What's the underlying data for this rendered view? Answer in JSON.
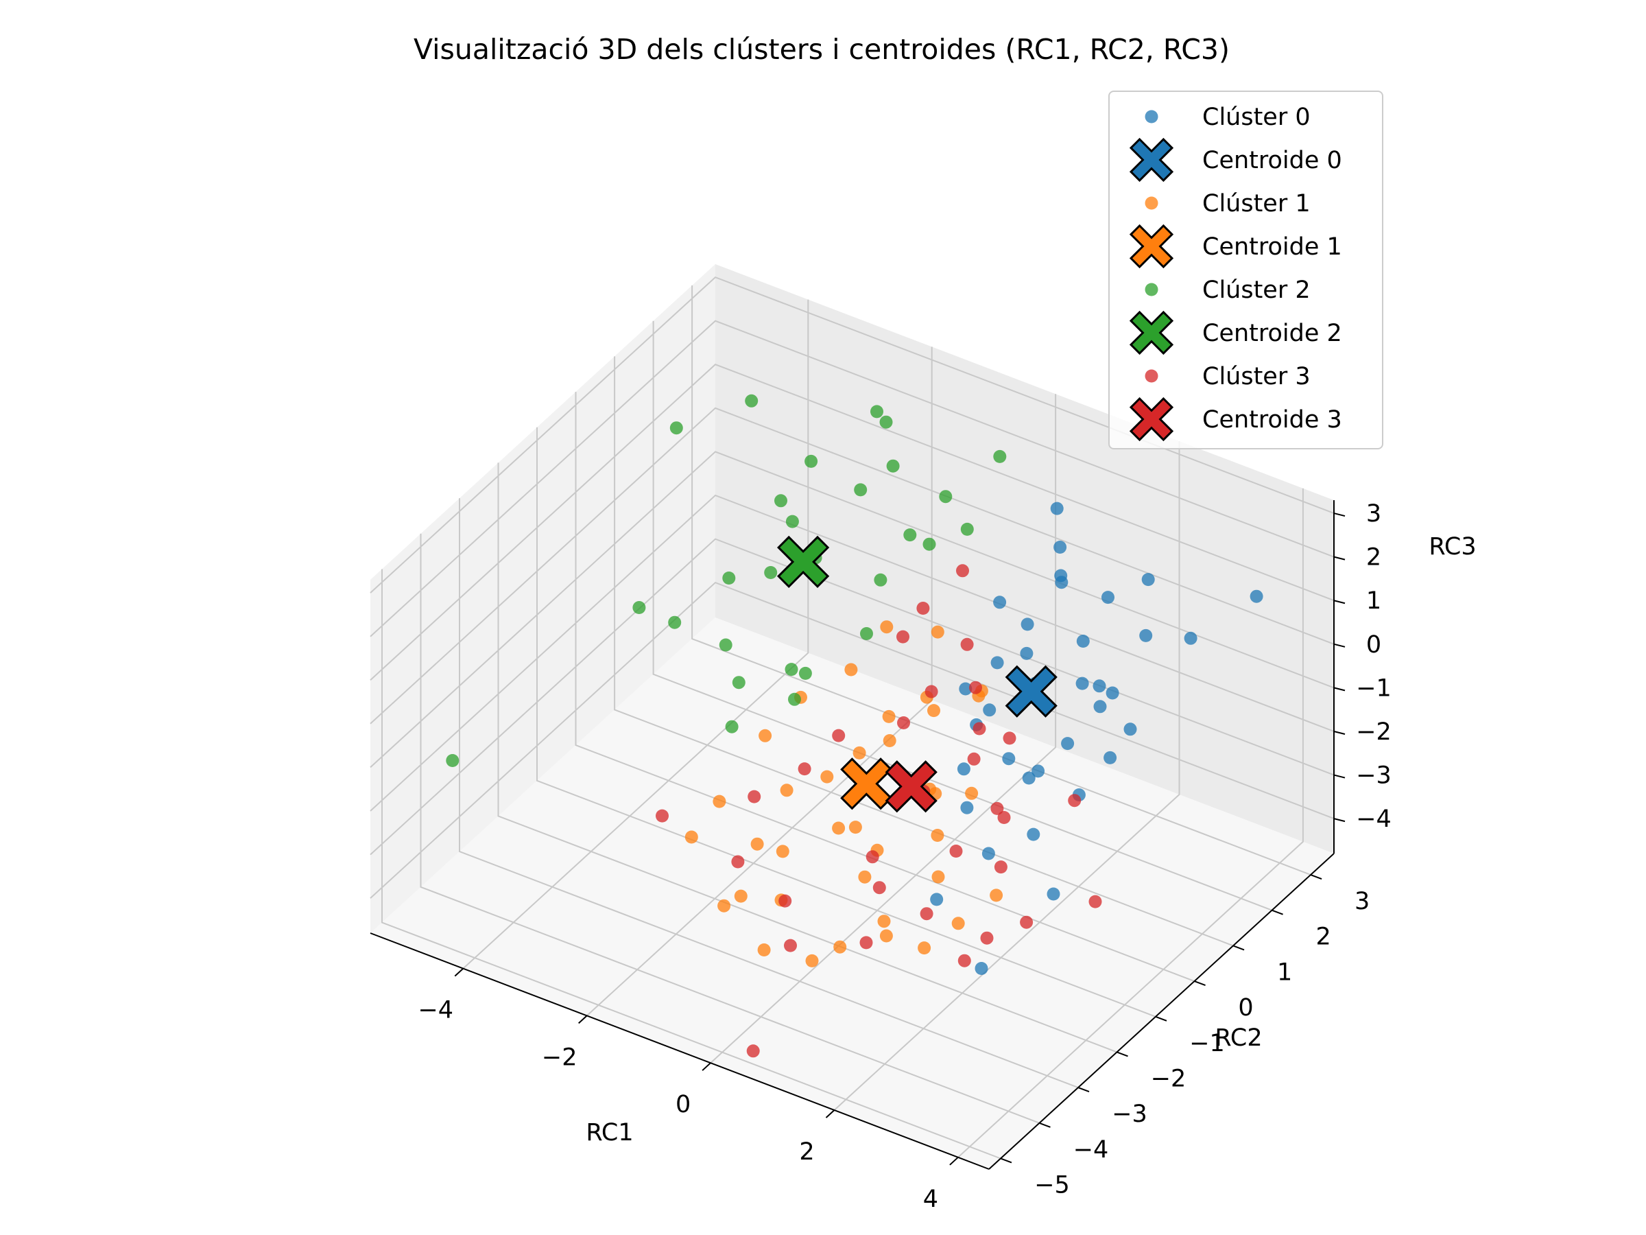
{
  "chart_data": {
    "type": "scatter",
    "title": "Visualització 3D dels clústers i centroides (RC1, RC2, RC3)",
    "xlabel": "RC1",
    "ylabel": "RC2",
    "zlabel": "RC3",
    "xlim": [
      -5.5,
      4.5
    ],
    "ylim": [
      -5.3,
      3.6
    ],
    "zlim": [
      -4.8,
      3.3
    ],
    "x_ticks": [
      "−4",
      "−2",
      "0",
      "2",
      "4"
    ],
    "y_ticks": [
      "−5",
      "−4",
      "−3",
      "−2",
      "−1",
      "0",
      "1",
      "2",
      "3"
    ],
    "z_ticks": [
      "−4",
      "−3",
      "−2",
      "−1",
      "0",
      "1",
      "2",
      "3"
    ],
    "grid": true,
    "legend_position": "top-right",
    "legend": [
      "Clúster 0",
      "Centroide 0",
      "Clúster 1",
      "Centroide 1",
      "Clúster 2",
      "Centroide 2",
      "Clúster 3",
      "Centroide 3"
    ],
    "colors": [
      "#1f77b4",
      "#ff7f0e",
      "#2ca02c",
      "#d62728"
    ],
    "series": [
      {
        "name": "Clúster 0",
        "points": [
          [
            1.6,
            1.2,
            1.8
          ],
          [
            1.4,
            1.5,
            1.6
          ],
          [
            2.2,
            0.8,
            1.1
          ],
          [
            2.5,
            0.3,
            0.7
          ],
          [
            1.8,
            0.2,
            0.4
          ],
          [
            1.0,
            0.5,
            0.2
          ],
          [
            2.8,
            0.6,
            0.4
          ],
          [
            3.1,
            -0.2,
            0.9
          ],
          [
            1.5,
            -0.5,
            0.2
          ],
          [
            2.0,
            -0.8,
            -0.4
          ],
          [
            2.6,
            -1.0,
            -0.2
          ],
          [
            3.2,
            -0.9,
            -0.5
          ],
          [
            1.2,
            1.8,
            1.9
          ],
          [
            0.9,
            2.2,
            2.3
          ],
          [
            2.9,
            1.3,
            1.2
          ],
          [
            3.4,
            0.1,
            0.3
          ],
          [
            1.7,
            -1.4,
            -1.2
          ],
          [
            2.3,
            -1.8,
            -1.6
          ],
          [
            3.6,
            -2.2,
            -1.5
          ],
          [
            0.8,
            0.0,
            -0.1
          ],
          [
            1.1,
            -0.2,
            -0.6
          ],
          [
            2.4,
            0.9,
            0.1
          ],
          [
            2.1,
            1.6,
            1.4
          ],
          [
            1.9,
            -2.5,
            -2.3
          ],
          [
            3.0,
            -3.1,
            -2.8
          ],
          [
            1.3,
            0.8,
            1.0
          ],
          [
            2.7,
            -0.4,
            0.0
          ],
          [
            0.6,
            1.2,
            0.8
          ],
          [
            3.5,
            1.5,
            1.3
          ],
          [
            2.2,
            -0.6,
            -0.9
          ],
          [
            1.6,
            0.3,
            0.9
          ],
          [
            2.9,
            -1.6,
            -1.0
          ],
          [
            4.0,
            2.4,
            1.8
          ],
          [
            1.4,
            -1.0,
            -0.8
          ],
          [
            2.5,
            2.0,
            1.7
          ],
          [
            3.2,
            -0.1,
            -0.3
          ]
        ]
      },
      {
        "name": "Clúster 1",
        "points": [
          [
            -0.5,
            -1.5,
            -1.6
          ],
          [
            0.0,
            -2.0,
            -2.1
          ],
          [
            0.5,
            -1.8,
            -2.5
          ],
          [
            -1.0,
            -2.5,
            -2.6
          ],
          [
            -0.3,
            -3.0,
            -3.1
          ],
          [
            0.8,
            -2.6,
            -2.3
          ],
          [
            1.3,
            -2.9,
            -2.8
          ],
          [
            -1.5,
            -1.5,
            -1.2
          ],
          [
            0.2,
            -1.0,
            -0.8
          ],
          [
            -0.8,
            -0.4,
            -0.2
          ],
          [
            0.6,
            -0.5,
            -0.3
          ],
          [
            1.1,
            -1.4,
            -1.1
          ],
          [
            -0.2,
            -3.6,
            -3.7
          ],
          [
            0.9,
            -3.4,
            -3.2
          ],
          [
            1.8,
            -2.3,
            -2.0
          ],
          [
            -1.8,
            -2.2,
            -2.3
          ],
          [
            -0.6,
            0.2,
            0.4
          ],
          [
            0.1,
            0.4,
            0.5
          ],
          [
            1.5,
            -0.7,
            0.8
          ],
          [
            2.2,
            -3.3,
            -2.6
          ],
          [
            -1.1,
            -3.2,
            -3.5
          ],
          [
            0.4,
            -2.2,
            -1.7
          ],
          [
            1.0,
            -1.1,
            -1.5
          ],
          [
            -0.4,
            -2.8,
            -2.2
          ],
          [
            1.6,
            -2.0,
            -1.4
          ],
          [
            -1.3,
            -0.9,
            -0.7
          ],
          [
            0.7,
            -3.8,
            -3.3
          ],
          [
            2.5,
            -2.9,
            -2.2
          ],
          [
            -0.9,
            -1.9,
            -1.8
          ],
          [
            0.3,
            -0.2,
            -0.4
          ],
          [
            1.9,
            -1.6,
            -0.6
          ],
          [
            -0.1,
            -1.3,
            -1.0
          ],
          [
            2.8,
            -2.4,
            -1.8
          ],
          [
            -2.0,
            -2.6,
            -2.9
          ],
          [
            1.2,
            -0.3,
            0.2
          ],
          [
            -0.7,
            -3.4,
            -2.9
          ],
          [
            0.0,
            -0.7,
            -0.6
          ],
          [
            1.4,
            -3.0,
            -3.0
          ]
        ]
      },
      {
        "name": "Clúster 2",
        "points": [
          [
            -4.5,
            1.0,
            2.2
          ],
          [
            -3.6,
            1.5,
            2.9
          ],
          [
            -2.2,
            2.5,
            2.6
          ],
          [
            -1.8,
            2.1,
            2.9
          ],
          [
            -1.5,
            1.8,
            2.3
          ],
          [
            -0.9,
            2.2,
            1.6
          ],
          [
            -2.5,
            0.8,
            1.3
          ],
          [
            -2.9,
            -0.2,
            0.6
          ],
          [
            -3.4,
            -0.8,
            -0.2
          ],
          [
            -4.1,
            -0.6,
            -0.4
          ],
          [
            -2.6,
            0.4,
            0.4
          ],
          [
            -2.0,
            0.6,
            0.9
          ],
          [
            -1.2,
            1.0,
            0.5
          ],
          [
            -0.8,
            0.0,
            0.3
          ],
          [
            -1.6,
            -0.3,
            -0.8
          ],
          [
            -2.3,
            -0.9,
            -0.9
          ],
          [
            -1.9,
            1.6,
            1.7
          ],
          [
            -1.1,
            1.6,
            1.1
          ],
          [
            -3.0,
            1.3,
            1.1
          ],
          [
            -2.7,
            -0.6,
            -0.5
          ],
          [
            -0.6,
            1.3,
            1.4
          ],
          [
            -5.3,
            -3.5,
            -2.2
          ],
          [
            -2.1,
            -1.4,
            -1.4
          ],
          [
            -1.4,
            -0.9,
            -0.8
          ],
          [
            -3.2,
            2.4,
            1.0
          ],
          [
            -0.4,
            2.8,
            2.3
          ],
          [
            -1.7,
            -0.5,
            -0.6
          ],
          [
            -0.3,
            1.8,
            1.5
          ]
        ]
      },
      {
        "name": "Clúster 3",
        "points": [
          [
            0.0,
            1.2,
            1.2
          ],
          [
            0.5,
            -0.4,
            0.0
          ],
          [
            -0.4,
            0.3,
            0.2
          ],
          [
            1.5,
            -0.9,
            -0.6
          ],
          [
            1.0,
            -1.4,
            -1.2
          ],
          [
            2.0,
            -1.1,
            -1.3
          ],
          [
            2.5,
            -1.8,
            -1.8
          ],
          [
            3.1,
            -2.1,
            -2.5
          ],
          [
            3.9,
            -1.6,
            -2.0
          ],
          [
            1.8,
            -2.6,
            -2.6
          ],
          [
            0.8,
            -2.4,
            -2.0
          ],
          [
            1.2,
            -3.2,
            -3.1
          ],
          [
            -0.8,
            -1.6,
            -1.5
          ],
          [
            -1.3,
            -2.1,
            -2.0
          ],
          [
            -2.6,
            -2.4,
            -2.9
          ],
          [
            -0.3,
            -2.9,
            -3.2
          ],
          [
            0.5,
            -5.0,
            -4.5
          ],
          [
            2.6,
            -2.9,
            -3.0
          ],
          [
            3.0,
            -0.7,
            -0.9
          ],
          [
            1.7,
            -0.3,
            -0.5
          ],
          [
            0.3,
            -0.8,
            -0.5
          ],
          [
            -0.2,
            0.5,
            0.8
          ],
          [
            0.7,
            0.2,
            0.7
          ],
          [
            2.3,
            -1.4,
            -1.1
          ],
          [
            1.4,
            -0.6,
            -0.2
          ],
          [
            0.9,
            0.1,
            -0.1
          ],
          [
            -0.5,
            -1.2,
            -0.9
          ],
          [
            1.9,
            -2.0,
            -1.6
          ],
          [
            0.1,
            -3.4,
            -3.6
          ],
          [
            2.9,
            -2.8,
            -2.4
          ],
          [
            -1.0,
            -3.0,
            -2.6
          ],
          [
            1.1,
            -2.7,
            -2.3
          ]
        ]
      }
    ],
    "centroids": [
      {
        "name": "Centroide 0",
        "point": [
          1.8,
          0.1,
          0.3
        ]
      },
      {
        "name": "Centroide 1",
        "point": [
          0.2,
          -1.6,
          -1.3
        ]
      },
      {
        "name": "Centroide 2",
        "point": [
          -2.2,
          0.6,
          0.7
        ]
      },
      {
        "name": "Centroide 3",
        "point": [
          0.8,
          -1.4,
          -1.2
        ]
      }
    ]
  }
}
